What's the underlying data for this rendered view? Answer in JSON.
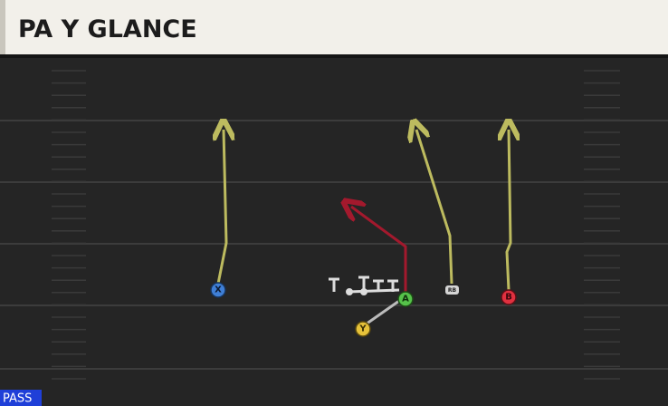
{
  "header": {
    "title": "PA Y GLANCE"
  },
  "footer": {
    "label": "PASS"
  },
  "players": [
    {
      "label": "X"
    },
    {
      "label": "A"
    },
    {
      "label": "Y"
    },
    {
      "label": "B"
    },
    {
      "label": "RB"
    }
  ]
}
